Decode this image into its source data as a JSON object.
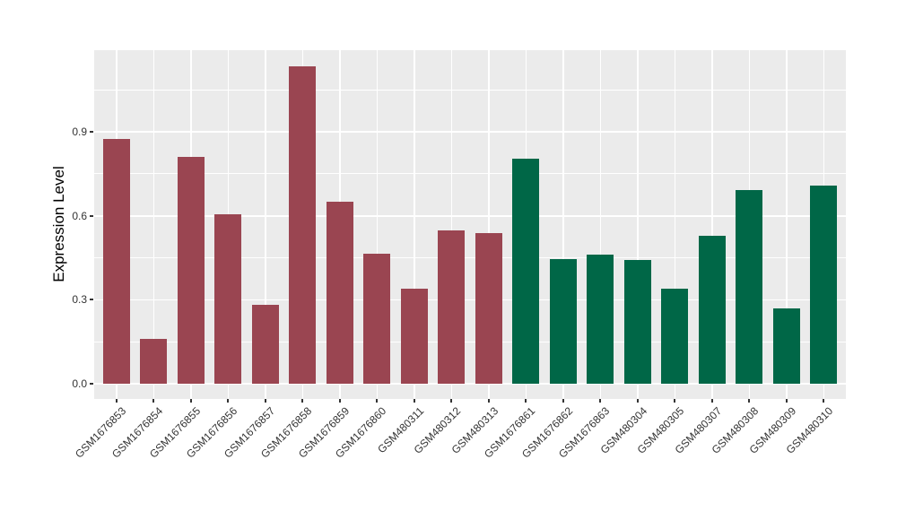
{
  "chart_data": {
    "type": "bar",
    "title": "",
    "xlabel": "",
    "ylabel": "Expression Level",
    "categories": [
      "GSM1676853",
      "GSM1676854",
      "GSM1676855",
      "GSM1676856",
      "GSM1676857",
      "GSM1676858",
      "GSM1676859",
      "GSM1676860",
      "GSM480311",
      "GSM480312",
      "GSM480313",
      "GSM1676861",
      "GSM1676862",
      "GSM1676863",
      "GSM480304",
      "GSM480305",
      "GSM480307",
      "GSM480308",
      "GSM480309",
      "GSM480310"
    ],
    "values": [
      0.874,
      0.16,
      0.812,
      0.605,
      0.281,
      1.135,
      0.65,
      0.464,
      0.341,
      0.548,
      0.538,
      0.804,
      0.445,
      0.46,
      0.441,
      0.341,
      0.528,
      0.692,
      0.268,
      0.708
    ],
    "groups": [
      "group1",
      "group1",
      "group1",
      "group1",
      "group1",
      "group1",
      "group1",
      "group1",
      "group1",
      "group1",
      "group1",
      "group2",
      "group2",
      "group2",
      "group2",
      "group2",
      "group2",
      "group2",
      "group2",
      "group2"
    ],
    "group_colors": {
      "group1": "#9A4551",
      "group2": "#006747"
    },
    "y_axis": {
      "ticks": [
        0.0,
        0.3,
        0.6,
        0.9
      ],
      "tick_labels": [
        "0.0",
        "0.3",
        "0.6",
        "0.9"
      ],
      "minor_ticks": [
        0.15,
        0.45,
        0.75,
        1.05
      ],
      "ylim": [
        -0.055,
        1.1925
      ]
    },
    "legend": "none",
    "grid": "on",
    "panel_bg": "#EBEBEB",
    "grid_color": "#FFFFFF",
    "axis_text_color": "#333333",
    "tick_mark_color": "#333333"
  }
}
